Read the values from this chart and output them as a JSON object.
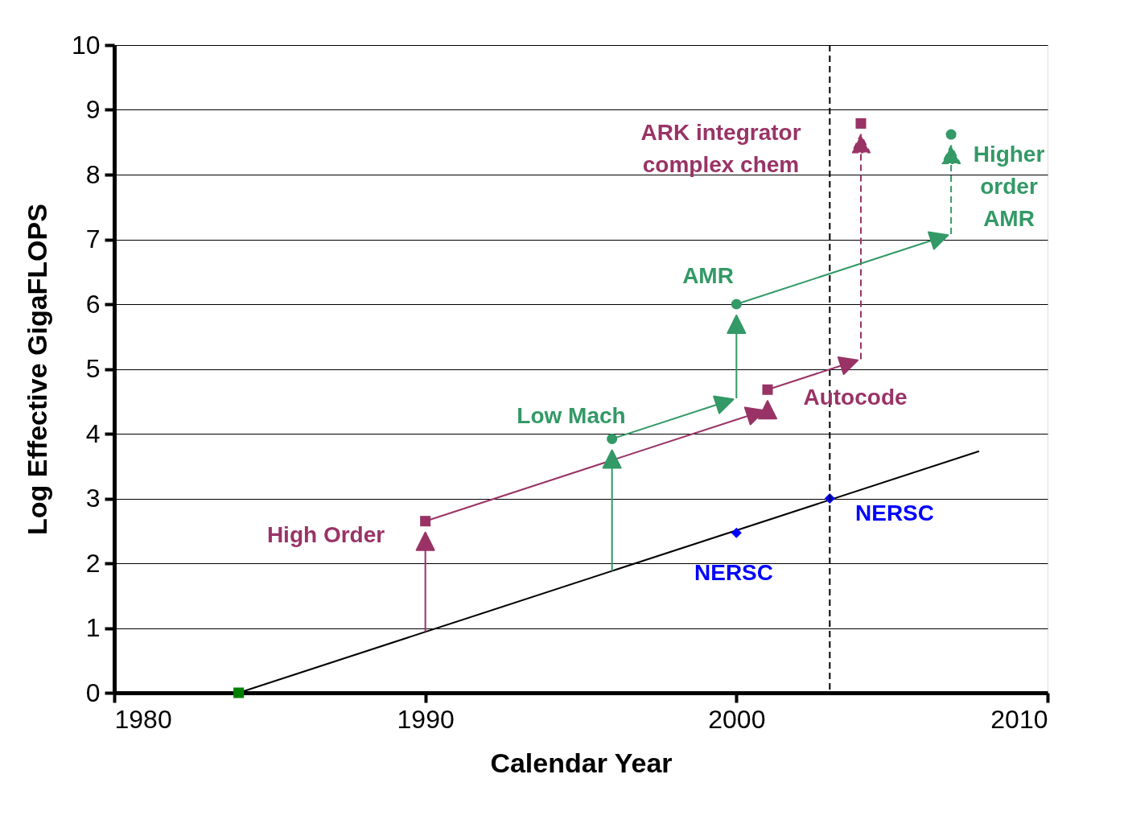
{
  "chart_data": {
    "type": "line",
    "xlabel": "Calendar Year",
    "ylabel": "Log Effective GigaFLOPS",
    "xlim": [
      1980,
      2010
    ],
    "xticks": [
      1980,
      1990,
      2000,
      2010
    ],
    "ylim": [
      0,
      10
    ],
    "yticks": [
      0,
      1,
      2,
      3,
      4,
      5,
      6,
      7,
      8,
      9,
      10
    ],
    "grid": "y",
    "series": [
      {
        "color": "#000000",
        "x": [
          1984,
          2007.8
        ],
        "values": [
          0,
          3.73
        ]
      },
      {
        "type": "scatter",
        "marker": "square",
        "color": "#993366",
        "x": [
          1990,
          2001,
          2004
        ],
        "values": [
          2.65,
          4.68,
          8.79
        ]
      },
      {
        "type": "scatter",
        "marker": "circle",
        "color": "#339966",
        "x": [
          1996,
          2000,
          2006.9
        ],
        "values": [
          3.92,
          6.0,
          8.62
        ]
      },
      {
        "type": "scatter",
        "marker": "diamond",
        "color": "#0000ff",
        "x": [
          2000,
          2003
        ],
        "values": [
          2.47,
          3.0
        ]
      },
      {
        "type": "scatter",
        "marker": "square",
        "color": "#008000",
        "x": [
          1984
        ],
        "values": [
          0
        ]
      }
    ],
    "ref_lines": [
      {
        "axis": "x",
        "value": 2003,
        "line_style": "dashed",
        "color": "#000000"
      }
    ],
    "annotations": [
      "ARK integrator\ncomplex chem",
      "Higher\norder\nAMR",
      "AMR",
      "Low Mach",
      "Autocode",
      "High Order",
      "NERSC",
      "NERSC"
    ]
  }
}
